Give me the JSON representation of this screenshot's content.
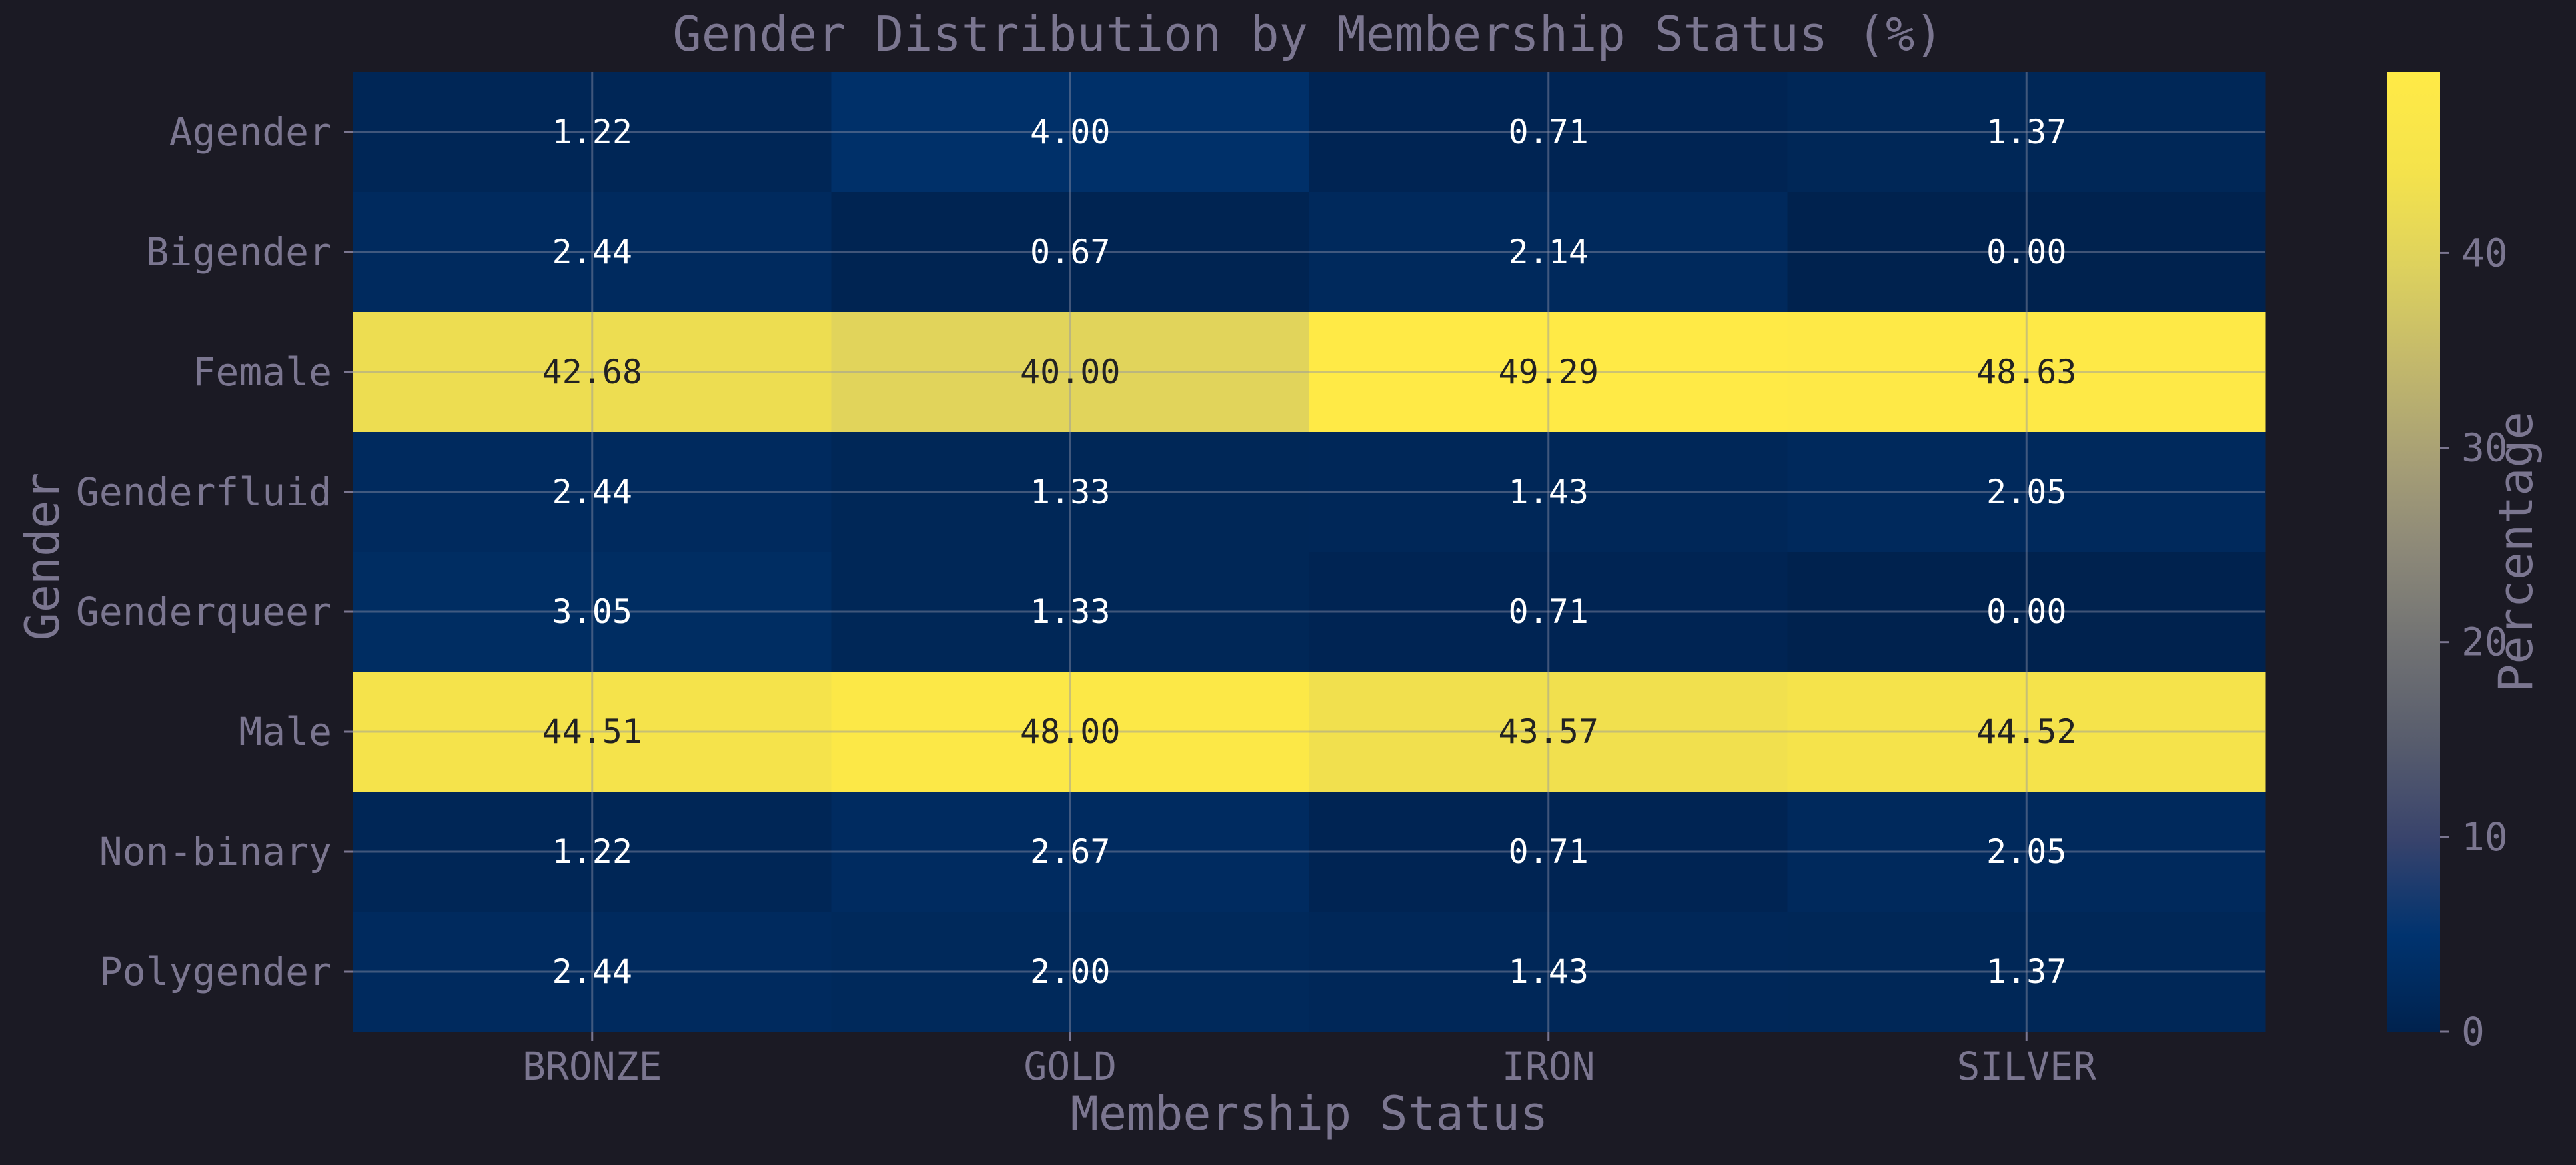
{
  "chart_data": {
    "type": "heatmap",
    "title": "Gender Distribution by Membership Status (%)",
    "xlabel": "Membership Status",
    "ylabel": "Gender",
    "x_categories": [
      "BRONZE",
      "GOLD",
      "IRON",
      "SILVER"
    ],
    "y_categories": [
      "Agender",
      "Bigender",
      "Female",
      "Genderfluid",
      "Genderqueer",
      "Male",
      "Non-binary",
      "Polygender"
    ],
    "values": [
      [
        1.22,
        4.0,
        0.71,
        1.37
      ],
      [
        2.44,
        0.67,
        2.14,
        0.0
      ],
      [
        42.68,
        40.0,
        49.29,
        48.63
      ],
      [
        2.44,
        1.33,
        1.43,
        2.05
      ],
      [
        3.05,
        1.33,
        0.71,
        0.0
      ],
      [
        44.51,
        48.0,
        43.57,
        44.52
      ],
      [
        1.22,
        2.67,
        0.71,
        2.05
      ],
      [
        2.44,
        2.0,
        1.43,
        1.37
      ]
    ],
    "value_format": "2 decimals",
    "colormap": "cividis",
    "colorbar": {
      "label": "Percentage",
      "range": [
        0,
        49.29
      ],
      "ticks": [
        0,
        10,
        20,
        30,
        40
      ]
    },
    "grid": true,
    "colors": {
      "background": "#1b1a24",
      "text_muted": "#7b7690",
      "annotation_light": "#ffffff",
      "annotation_dark": "#222222",
      "grid": "#8e93a8"
    }
  }
}
